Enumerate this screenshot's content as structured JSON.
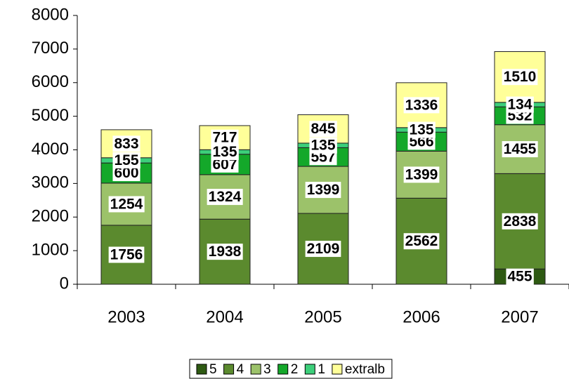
{
  "chart_data": {
    "type": "stacked_bar",
    "categories": [
      "2003",
      "2004",
      "2005",
      "2006",
      "2007"
    ],
    "series": [
      {
        "name": "5",
        "color": "#2e5a12",
        "values": [
          null,
          null,
          null,
          null,
          455
        ]
      },
      {
        "name": "4",
        "color": "#5b8a2e",
        "values": [
          1756,
          1938,
          2109,
          2562,
          2838
        ]
      },
      {
        "name": "3",
        "color": "#9cc26a",
        "values": [
          1254,
          1324,
          1399,
          1399,
          1455
        ]
      },
      {
        "name": "2",
        "color": "#14a82a",
        "values": [
          600,
          607,
          557,
          566,
          532
        ]
      },
      {
        "name": "1",
        "color": "#3ccf7a",
        "values": [
          155,
          135,
          135,
          135,
          134
        ]
      },
      {
        "name": "extralb",
        "color": "#ffff99",
        "values": [
          833,
          717,
          845,
          1336,
          1510
        ]
      }
    ],
    "ylim": [
      0,
      8000
    ],
    "yticks": [
      0,
      1000,
      2000,
      3000,
      4000,
      5000,
      6000,
      7000,
      8000
    ],
    "grid": false,
    "legend": "bottom"
  }
}
